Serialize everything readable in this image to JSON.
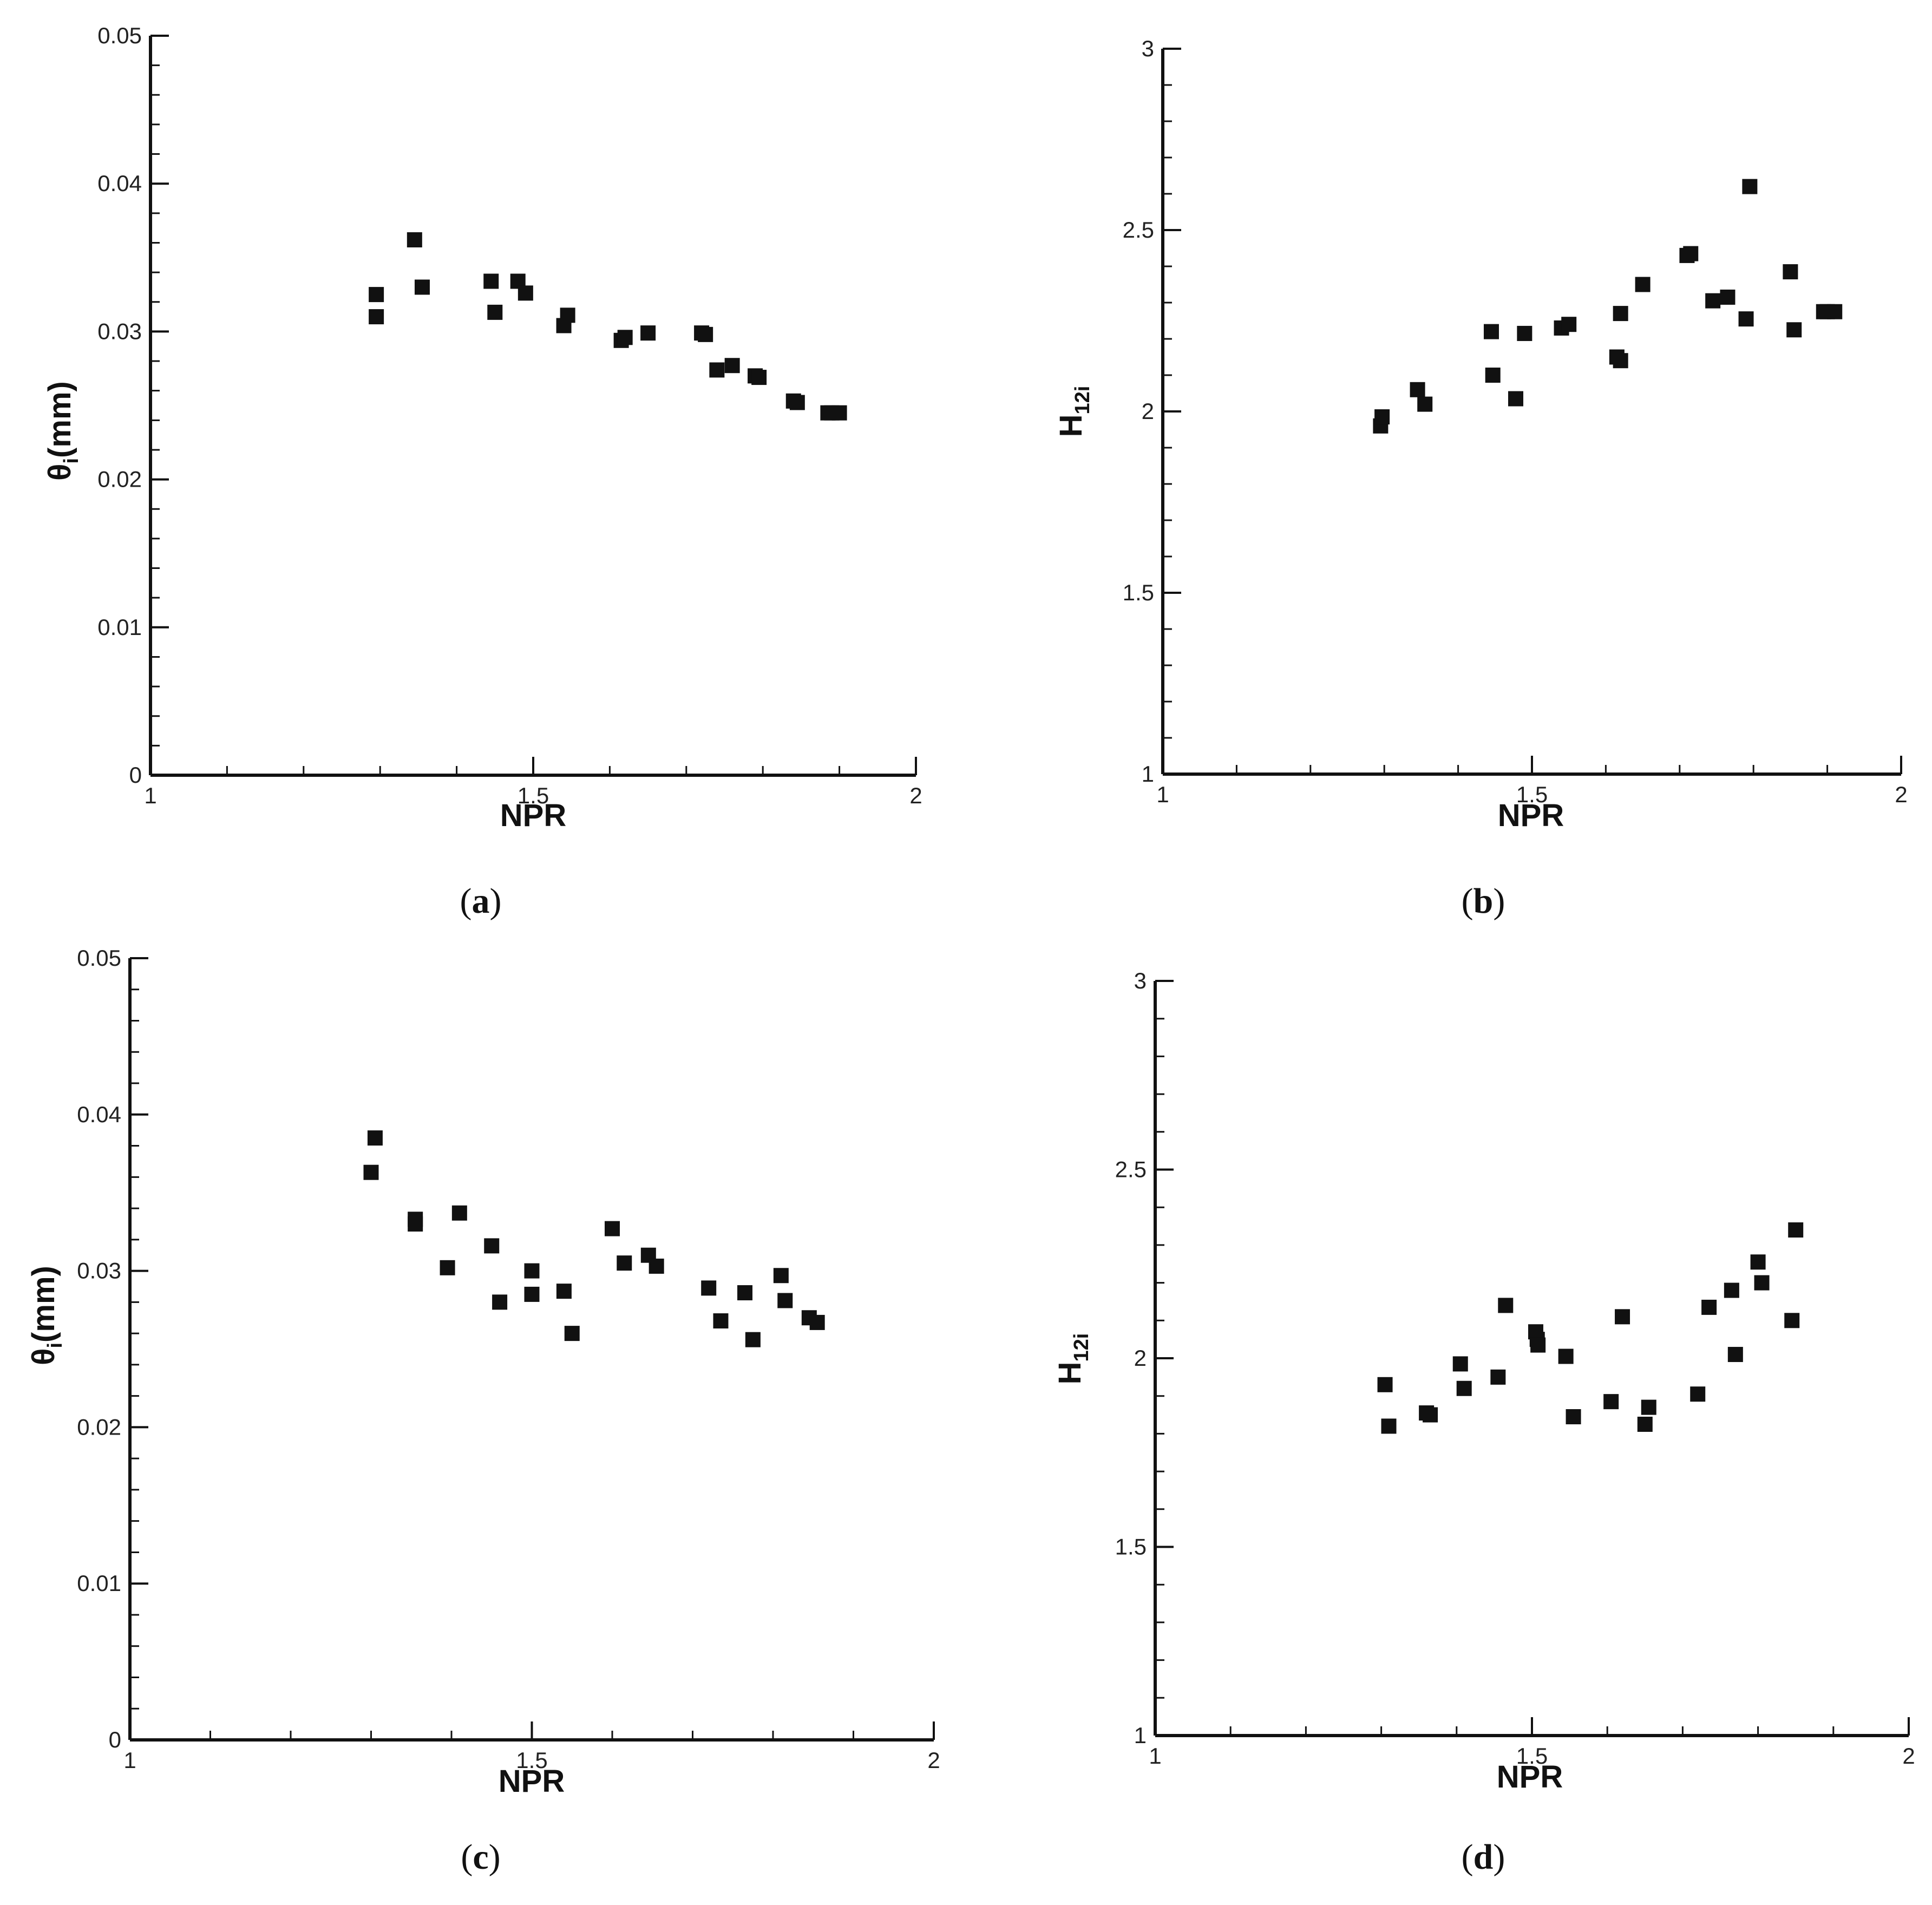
{
  "chart_data": [
    {
      "panel": "(a)",
      "panel_letter": "a",
      "type": "scatter",
      "xlabel": "NPR",
      "ylabel": "θi(mm)",
      "ylabel_main": "θ",
      "ylabel_sub": "i",
      "ylabel_tail": "(mm)",
      "xlim": [
        1,
        2
      ],
      "ylim": [
        0,
        0.05
      ],
      "xticks": [
        "1",
        "1.5",
        "2"
      ],
      "yticks": [
        "0",
        "0.01",
        "0.02",
        "0.03",
        "0.04",
        "0.05"
      ],
      "marker": "filled-square",
      "series": [
        {
          "x": [
            1.295,
            1.295,
            1.345,
            1.355,
            1.445,
            1.45,
            1.48,
            1.49,
            1.54,
            1.545,
            1.615,
            1.62,
            1.65,
            1.72,
            1.725,
            1.74,
            1.76,
            1.79,
            1.795,
            1.84,
            1.845,
            1.885,
            1.89,
            1.9
          ],
          "y": [
            0.0325,
            0.031,
            0.0362,
            0.033,
            0.0334,
            0.0313,
            0.0334,
            0.0326,
            0.0304,
            0.0311,
            0.0294,
            0.0296,
            0.0299,
            0.0299,
            0.0298,
            0.0274,
            0.0277,
            0.027,
            0.0269,
            0.0253,
            0.0252,
            0.0245,
            0.0245,
            0.0245
          ]
        }
      ]
    },
    {
      "panel": "(b)",
      "panel_letter": "b",
      "type": "scatter",
      "xlabel": "NPR",
      "ylabel": "H12i",
      "ylabel_main": "H",
      "ylabel_sub": "12i",
      "ylabel_tail": "",
      "xlim": [
        1,
        2
      ],
      "ylim": [
        1,
        3
      ],
      "xticks": [
        "1",
        "1.5",
        "2"
      ],
      "yticks": [
        "1",
        "1.5",
        "2",
        "2.5",
        "3"
      ],
      "marker": "filled-square",
      "series": [
        {
          "x": [
            1.295,
            1.297,
            1.345,
            1.355,
            1.445,
            1.447,
            1.478,
            1.49,
            1.54,
            1.55,
            1.615,
            1.62,
            1.62,
            1.65,
            1.71,
            1.715,
            1.745,
            1.765,
            1.79,
            1.795,
            1.85,
            1.855,
            1.895,
            1.9,
            1.91
          ],
          "y": [
            1.96,
            1.985,
            2.06,
            2.02,
            2.22,
            2.1,
            2.035,
            2.215,
            2.23,
            2.24,
            2.15,
            2.14,
            2.27,
            2.35,
            2.43,
            2.435,
            2.305,
            2.315,
            2.255,
            2.62,
            2.385,
            2.225,
            2.275,
            2.275,
            2.275
          ]
        }
      ]
    },
    {
      "panel": "(c)",
      "panel_letter": "c",
      "type": "scatter",
      "xlabel": "NPR",
      "ylabel": "θi(mm)",
      "ylabel_main": "θ",
      "ylabel_sub": "i",
      "ylabel_tail": "(mm)",
      "xlim": [
        1,
        2
      ],
      "ylim": [
        0,
        0.05
      ],
      "xticks": [
        "1",
        "1.5",
        "2"
      ],
      "yticks": [
        "0",
        "0.01",
        "0.02",
        "0.03",
        "0.04",
        "0.05"
      ],
      "marker": "filled-square",
      "series": [
        {
          "x": [
            1.3,
            1.305,
            1.355,
            1.355,
            1.395,
            1.41,
            1.45,
            1.46,
            1.5,
            1.5,
            1.54,
            1.55,
            1.6,
            1.615,
            1.645,
            1.655,
            1.72,
            1.735,
            1.765,
            1.775,
            1.81,
            1.815,
            1.845,
            1.855
          ],
          "y": [
            0.0363,
            0.0385,
            0.0333,
            0.033,
            0.0302,
            0.0337,
            0.0316,
            0.028,
            0.03,
            0.0285,
            0.0287,
            0.026,
            0.0327,
            0.0305,
            0.031,
            0.0303,
            0.0289,
            0.0268,
            0.0286,
            0.0256,
            0.0297,
            0.0281,
            0.027,
            0.0267
          ]
        }
      ]
    },
    {
      "panel": "(d)",
      "panel_letter": "d",
      "type": "scatter",
      "xlabel": "NPR",
      "ylabel": "H12i",
      "ylabel_main": "H",
      "ylabel_sub": "12i",
      "ylabel_tail": "",
      "xlim": [
        1,
        2
      ],
      "ylim": [
        1,
        3
      ],
      "xticks": [
        "1",
        "1.5",
        "2"
      ],
      "yticks": [
        "1",
        "1.5",
        "2",
        "2.5",
        "3"
      ],
      "marker": "filled-square",
      "series": [
        {
          "x": [
            1.305,
            1.31,
            1.36,
            1.365,
            1.405,
            1.41,
            1.455,
            1.465,
            1.505,
            1.507,
            1.508,
            1.545,
            1.555,
            1.605,
            1.62,
            1.65,
            1.655,
            1.72,
            1.735,
            1.765,
            1.77,
            1.8,
            1.805,
            1.845,
            1.85
          ],
          "y": [
            1.93,
            1.82,
            1.855,
            1.85,
            1.985,
            1.92,
            1.95,
            2.14,
            2.07,
            2.05,
            2.035,
            2.005,
            1.845,
            1.885,
            2.11,
            1.825,
            1.87,
            1.905,
            2.135,
            2.18,
            2.01,
            2.255,
            2.2,
            2.1,
            2.34
          ]
        }
      ]
    }
  ]
}
